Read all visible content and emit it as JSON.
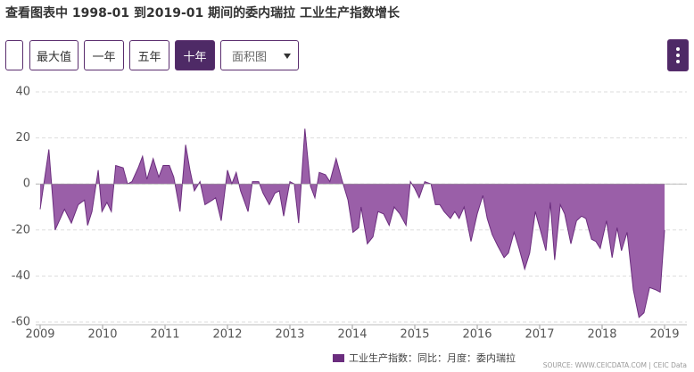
{
  "title": "查看图表中 1998-01 到2019-01 期间的委内瑞拉 工业生产指数增长",
  "buttons": [
    "最大值",
    "一年",
    "五年",
    "十年"
  ],
  "dropdown": "面积图",
  "source": "SOURCE: WWW.CEICDATA.COM | CEIC Data",
  "chart_data": {
    "type": "area",
    "x": [
      2009.0,
      2009.14,
      2009.24,
      2009.39,
      2009.5,
      2009.61,
      2009.71,
      2009.76,
      2009.83,
      2009.93,
      2009.99,
      2010.07,
      2010.14,
      2010.21,
      2010.33,
      2010.4,
      2010.47,
      2010.57,
      2010.64,
      2010.71,
      2010.81,
      2010.9,
      2010.97,
      2011.07,
      2011.14,
      2011.24,
      2011.33,
      2011.4,
      2011.47,
      2011.56,
      2011.64,
      2011.76,
      2011.81,
      2011.9,
      2012.0,
      2012.07,
      2012.14,
      2012.21,
      2012.33,
      2012.4,
      2012.5,
      2012.57,
      2012.67,
      2012.76,
      2012.83,
      2012.9,
      2013.0,
      2013.07,
      2013.14,
      2013.24,
      2013.33,
      2013.4,
      2013.47,
      2013.57,
      2013.64,
      2013.74,
      2013.83,
      2013.93,
      2014.01,
      2014.1,
      2014.14,
      2014.24,
      2014.33,
      2014.41,
      2014.5,
      2014.59,
      2014.67,
      2014.76,
      2014.86,
      2014.93,
      2015.0,
      2015.07,
      2015.16,
      2015.26,
      2015.33,
      2015.4,
      2015.47,
      2015.57,
      2015.64,
      2015.71,
      2015.79,
      2015.9,
      2016.0,
      2016.09,
      2016.16,
      2016.24,
      2016.33,
      2016.43,
      2016.5,
      2016.59,
      2016.67,
      2016.76,
      2016.84,
      2016.93,
      2017.01,
      2017.1,
      2017.17,
      2017.24,
      2017.33,
      2017.4,
      2017.5,
      2017.59,
      2017.67,
      2017.74,
      2017.83,
      2017.9,
      2017.97,
      2018.07,
      2018.16,
      2018.24,
      2018.31,
      2018.4,
      2018.5,
      2018.59,
      2018.67,
      2018.76,
      2018.86,
      2018.93,
      2019.0
    ],
    "series": [
      {
        "name": "工业生产指数：同比：月度：委内瑞拉",
        "color": "#6b2d7e",
        "fill": "#9a5fa8",
        "values": [
          -11,
          15,
          -20,
          -11,
          -17,
          -9,
          -7,
          -18,
          -12,
          6,
          -12,
          -8,
          -12,
          8,
          7,
          0,
          1,
          7,
          12,
          2,
          11,
          3,
          8,
          8,
          3,
          -12,
          17,
          6,
          -3,
          1,
          -9,
          -7,
          -6,
          -16,
          6,
          0,
          5,
          -3,
          -12,
          1,
          1,
          -4,
          -9,
          -4,
          -3,
          -14,
          1,
          0,
          -17,
          24,
          -1,
          -6,
          5,
          4,
          1,
          11,
          2,
          -7,
          -21,
          -19,
          -10,
          -26,
          -23,
          -12,
          -13,
          -18,
          -10,
          -13,
          -18,
          1,
          -2,
          -6,
          1,
          0,
          -9,
          -9,
          -12,
          -15,
          -12,
          -15,
          -10,
          -25,
          -13,
          -5,
          -15,
          -22,
          -27,
          -32,
          -30,
          -21,
          -28,
          -37,
          -30,
          -12,
          -20,
          -29,
          -8,
          -33,
          -9,
          -13,
          -26,
          -16,
          -14,
          -15,
          -24,
          -25,
          -28,
          -16,
          -32,
          -19,
          -29,
          -21,
          -46,
          -58,
          -56,
          -45,
          -46,
          -47,
          -20
        ]
      }
    ],
    "xlim": [
      2009,
      2019
    ],
    "xticks": [
      2009,
      2010,
      2011,
      2012,
      2013,
      2014,
      2015,
      2016,
      2017,
      2018,
      2019
    ],
    "ylim": [
      -60,
      40
    ],
    "yticks": [
      -60,
      -40,
      -20,
      0,
      20,
      40
    ],
    "grid": true
  }
}
